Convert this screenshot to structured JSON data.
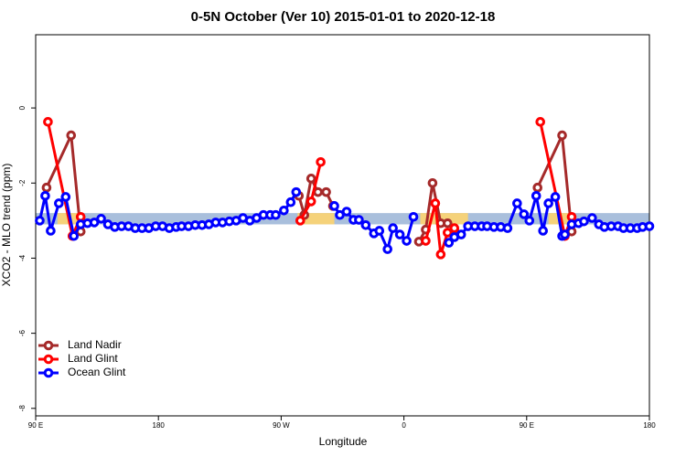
{
  "chart_data": {
    "type": "line",
    "title": "0-5N October (Ver 10)   2015-01-01 to 2020-12-18",
    "xlabel": "Longitude",
    "ylabel": "XCO2 - MLO trend (ppm)",
    "xlim": [
      90,
      540
    ],
    "ylim": [
      -8.2,
      1.95
    ],
    "xticks": [
      {
        "value": 90,
        "label": "90 E"
      },
      180,
      {
        "value": 270,
        "label": "90 W"
      },
      {
        "value": 360,
        "label": "0"
      },
      {
        "value": 450,
        "label": "90 E"
      },
      {
        "value": 540,
        "label": "180"
      }
    ],
    "yticks": [
      0,
      -2,
      -4,
      -6,
      -8
    ],
    "ocean_band": {
      "ylim": [
        -3.1,
        -2.8
      ],
      "color": "#a9bfdc"
    },
    "land_band": {
      "x": [
        [
          106,
          124
        ],
        [
          282,
          309
        ],
        [
          372,
          407
        ],
        [
          466,
          485
        ]
      ],
      "color": "#f5d27a"
    },
    "legend": "bottom-left",
    "series": [
      {
        "name": "Land Nadir",
        "color": "#a52a2a",
        "x": [
          98,
          116,
          123,
          null,
          283,
          287,
          292,
          297,
          303,
          308,
          null,
          371,
          376,
          381,
          387,
          392,
          397,
          null,
          458,
          476,
          483
        ],
        "values": [
          -2.12,
          -0.73,
          -3.29,
          null,
          -2.34,
          -2.85,
          -1.88,
          -2.24,
          -2.24,
          -2.61,
          null,
          -3.56,
          -3.24,
          -2.0,
          -3.07,
          -3.07,
          -3.27,
          null,
          -2.12,
          -0.73,
          -3.29
        ]
      },
      {
        "name": "Land Glint",
        "color": "#ff0000",
        "x": [
          99,
          117,
          123,
          null,
          284,
          292,
          299,
          null,
          376,
          383,
          387,
          392,
          397,
          null,
          460,
          478,
          483
        ],
        "values": [
          -0.37,
          -3.41,
          -2.9,
          null,
          -3.0,
          -2.49,
          -1.44,
          null,
          -3.54,
          -2.54,
          -3.9,
          -3.32,
          -3.2,
          null,
          -0.37,
          -3.41,
          -2.9
        ]
      },
      {
        "name": "Ocean Glint",
        "color": "#0000ff",
        "x": [
          93,
          97,
          101,
          107,
          112,
          118,
          123,
          128,
          133,
          138,
          143,
          148,
          153,
          158,
          163,
          168,
          173,
          178,
          183,
          188,
          193,
          197,
          202,
          207,
          212,
          217,
          222,
          227,
          232,
          237,
          242,
          247,
          252,
          257,
          262,
          266,
          272,
          277,
          281,
          null,
          309,
          313,
          318,
          323,
          327,
          332,
          338,
          342,
          348,
          352,
          357,
          362,
          367,
          null,
          393,
          397,
          402,
          407,
          412,
          417,
          421,
          426,
          431,
          436,
          443,
          448,
          452,
          457,
          462,
          466,
          471,
          476,
          478,
          483,
          488,
          492,
          498,
          503,
          507,
          512,
          517,
          521,
          526,
          531,
          535,
          540
        ],
        "values": [
          -3.0,
          -2.34,
          -3.27,
          -2.54,
          -2.37,
          -3.41,
          -3.1,
          -3.07,
          -3.05,
          -2.95,
          -3.1,
          -3.17,
          -3.15,
          -3.15,
          -3.2,
          -3.2,
          -3.2,
          -3.15,
          -3.15,
          -3.2,
          -3.17,
          -3.15,
          -3.15,
          -3.12,
          -3.12,
          -3.1,
          -3.05,
          -3.05,
          -3.02,
          -3.0,
          -2.93,
          -3.0,
          -2.93,
          -2.85,
          -2.85,
          -2.85,
          -2.73,
          -2.51,
          -2.24,
          null,
          -2.61,
          -2.85,
          -2.76,
          -2.98,
          -2.98,
          -3.12,
          -3.34,
          -3.27,
          -3.76,
          -3.2,
          -3.37,
          -3.54,
          -2.9,
          null,
          -3.59,
          -3.44,
          -3.37,
          -3.15,
          -3.15,
          -3.15,
          -3.15,
          -3.17,
          -3.17,
          -3.2,
          -2.54,
          -2.83,
          -3.0,
          -2.34,
          -3.27,
          -2.54,
          -2.37,
          -3.41,
          -3.37,
          -3.1,
          -3.07,
          -3.02,
          -2.93,
          -3.1,
          -3.17,
          -3.15,
          -3.15,
          -3.2,
          -3.2,
          -3.2,
          -3.17,
          -3.15
        ]
      }
    ]
  }
}
